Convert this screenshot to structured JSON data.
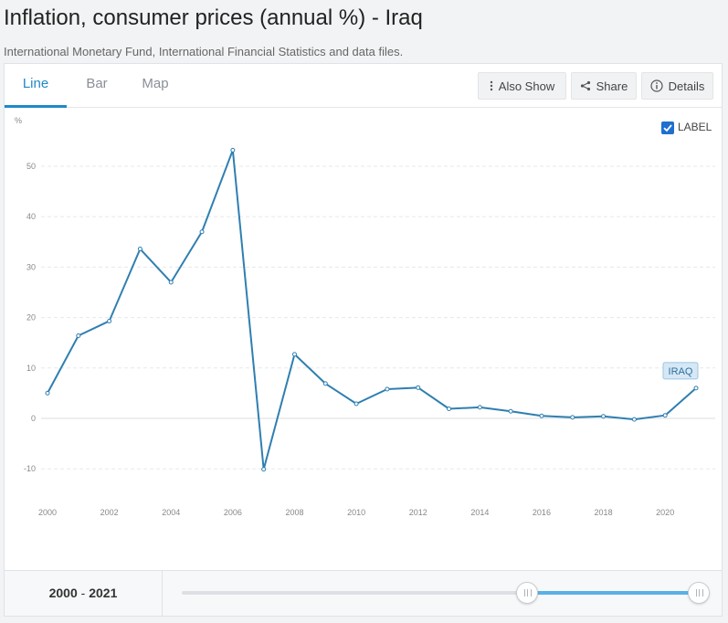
{
  "header": {
    "title": "Inflation, consumer prices (annual %) - Iraq",
    "source": "International Monetary Fund, International Financial Statistics and data files."
  },
  "tabs": [
    {
      "label": "Line",
      "active": true
    },
    {
      "label": "Bar",
      "active": false
    },
    {
      "label": "Map",
      "active": false
    }
  ],
  "toolbar": {
    "also_show": "Also Show",
    "share": "Share",
    "details": "Details"
  },
  "legend": {
    "checkbox_label": "LABEL",
    "checked": true
  },
  "chart_data": {
    "type": "line",
    "title": "",
    "ylabel": "%",
    "xlabel": "",
    "ylim": [
      -15,
      58
    ],
    "xlim": [
      2000,
      2021
    ],
    "y_ticks": [
      -10,
      0,
      10,
      20,
      30,
      40,
      50
    ],
    "x_ticks": [
      2000,
      2002,
      2004,
      2006,
      2008,
      2010,
      2012,
      2014,
      2016,
      2018,
      2020
    ],
    "grid": true,
    "line_color": "#2f7fb0",
    "series": [
      {
        "name": "IRAQ",
        "x": [
          2000,
          2001,
          2002,
          2003,
          2004,
          2005,
          2006,
          2007,
          2008,
          2009,
          2010,
          2011,
          2012,
          2013,
          2014,
          2015,
          2016,
          2017,
          2018,
          2019,
          2020,
          2021
        ],
        "values": [
          5.0,
          16.4,
          19.3,
          33.6,
          27.0,
          37.0,
          53.2,
          -10.1,
          12.7,
          6.9,
          2.9,
          5.8,
          6.1,
          1.9,
          2.2,
          1.4,
          0.5,
          0.2,
          0.4,
          -0.2,
          0.6,
          6.0
        ]
      }
    ]
  },
  "footer": {
    "range_start": "2000",
    "range_sep": " - ",
    "range_end": "2021",
    "slider_start_fraction": 0.667,
    "slider_end_fraction": 1.0
  }
}
